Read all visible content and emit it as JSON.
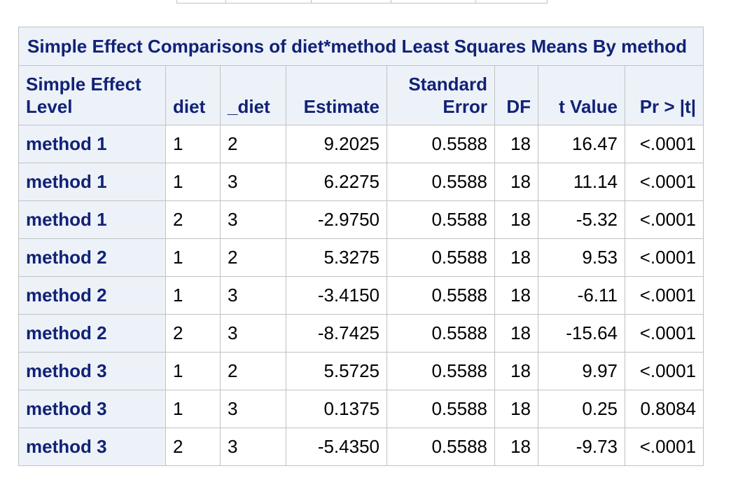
{
  "table": {
    "caption": "Simple Effect Comparisons of diet*method Least Squares Means By method",
    "headers": {
      "level_line1": "Simple Effect",
      "level_line2": "Level",
      "diet": "diet",
      "_diet": "_diet",
      "estimate": "Estimate",
      "stderr_line1": "Standard",
      "stderr_line2": "Error",
      "df": "DF",
      "tvalue": "t Value",
      "pr": "Pr > |t|"
    },
    "rows": [
      {
        "level": "method 1",
        "diet": "1",
        "_diet": "2",
        "estimate": "9.2025",
        "stderr": "0.5588",
        "df": "18",
        "tvalue": "16.47",
        "pr": "<.0001"
      },
      {
        "level": "method 1",
        "diet": "1",
        "_diet": "3",
        "estimate": "6.2275",
        "stderr": "0.5588",
        "df": "18",
        "tvalue": "11.14",
        "pr": "<.0001"
      },
      {
        "level": "method 1",
        "diet": "2",
        "_diet": "3",
        "estimate": "-2.9750",
        "stderr": "0.5588",
        "df": "18",
        "tvalue": "-5.32",
        "pr": "<.0001"
      },
      {
        "level": "method 2",
        "diet": "1",
        "_diet": "2",
        "estimate": "5.3275",
        "stderr": "0.5588",
        "df": "18",
        "tvalue": "9.53",
        "pr": "<.0001"
      },
      {
        "level": "method 2",
        "diet": "1",
        "_diet": "3",
        "estimate": "-3.4150",
        "stderr": "0.5588",
        "df": "18",
        "tvalue": "-6.11",
        "pr": "<.0001"
      },
      {
        "level": "method 2",
        "diet": "2",
        "_diet": "3",
        "estimate": "-8.7425",
        "stderr": "0.5588",
        "df": "18",
        "tvalue": "-15.64",
        "pr": "<.0001"
      },
      {
        "level": "method 3",
        "diet": "1",
        "_diet": "2",
        "estimate": "5.5725",
        "stderr": "0.5588",
        "df": "18",
        "tvalue": "9.97",
        "pr": "<.0001"
      },
      {
        "level": "method 3",
        "diet": "1",
        "_diet": "3",
        "estimate": "0.1375",
        "stderr": "0.5588",
        "df": "18",
        "tvalue": "0.25",
        "pr": "0.8084"
      },
      {
        "level": "method 3",
        "diet": "2",
        "_diet": "3",
        "estimate": "-5.4350",
        "stderr": "0.5588",
        "df": "18",
        "tvalue": "-9.73",
        "pr": "<.0001"
      }
    ]
  },
  "colors": {
    "header_bg": "#edf2f9",
    "header_text": "#112277",
    "border": "#c1c1c1"
  }
}
